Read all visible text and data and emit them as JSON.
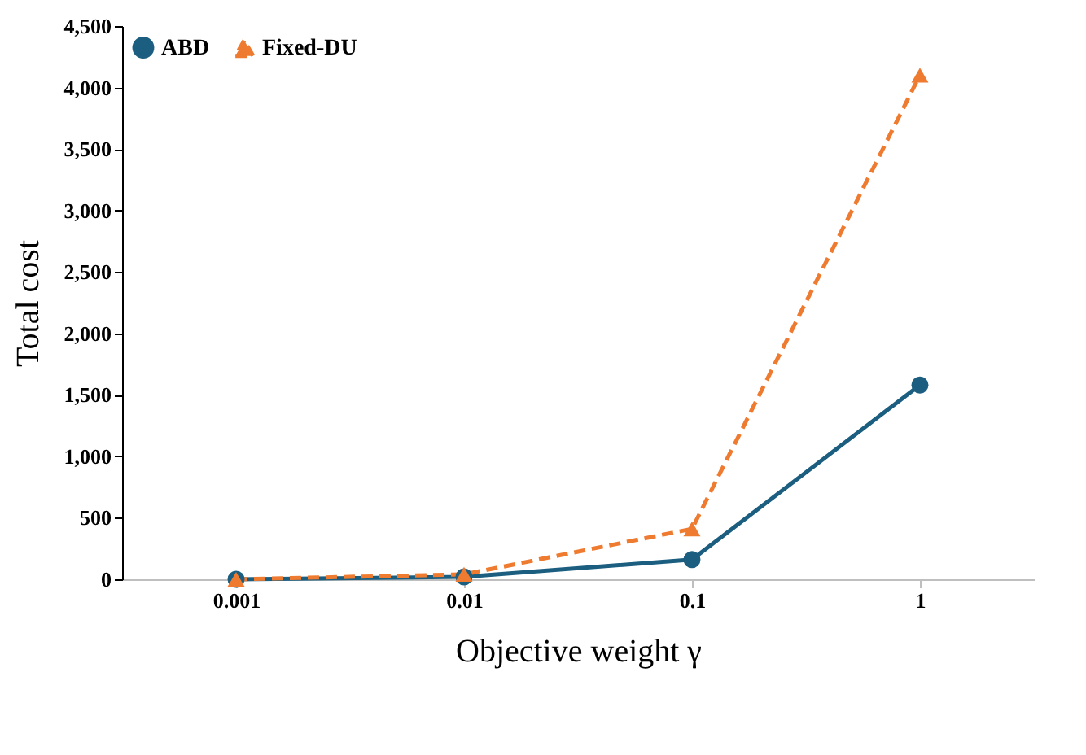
{
  "chart_data": {
    "type": "line",
    "xlabel": "Objective weight γ",
    "ylabel": "Total cost",
    "categories": [
      "0.001",
      "0.01",
      "0.1",
      "1"
    ],
    "series": [
      {
        "name": "ABD",
        "color": "#1b5e80",
        "values": [
          0,
          20,
          160,
          1580
        ],
        "marker": "circle",
        "line_style": "solid"
      },
      {
        "name": "Fixed-DU",
        "color": "#ee7b30",
        "values": [
          0,
          40,
          410,
          4100
        ],
        "marker": "triangle",
        "line_style": "dashed"
      }
    ],
    "ylim": [
      0,
      4500
    ],
    "yticks": [
      {
        "value": 0,
        "label": "0"
      },
      {
        "value": 500,
        "label": "500"
      },
      {
        "value": 1000,
        "label": "1,000"
      },
      {
        "value": 1500,
        "label": "1,500"
      },
      {
        "value": 2000,
        "label": "2,000"
      },
      {
        "value": 2500,
        "label": "2,500"
      },
      {
        "value": 3000,
        "label": "3,000"
      },
      {
        "value": 3500,
        "label": "3,500"
      },
      {
        "value": 4000,
        "label": "4,000"
      },
      {
        "value": 4500,
        "label": "4,500"
      }
    ],
    "grid": false,
    "legend": "top left"
  }
}
